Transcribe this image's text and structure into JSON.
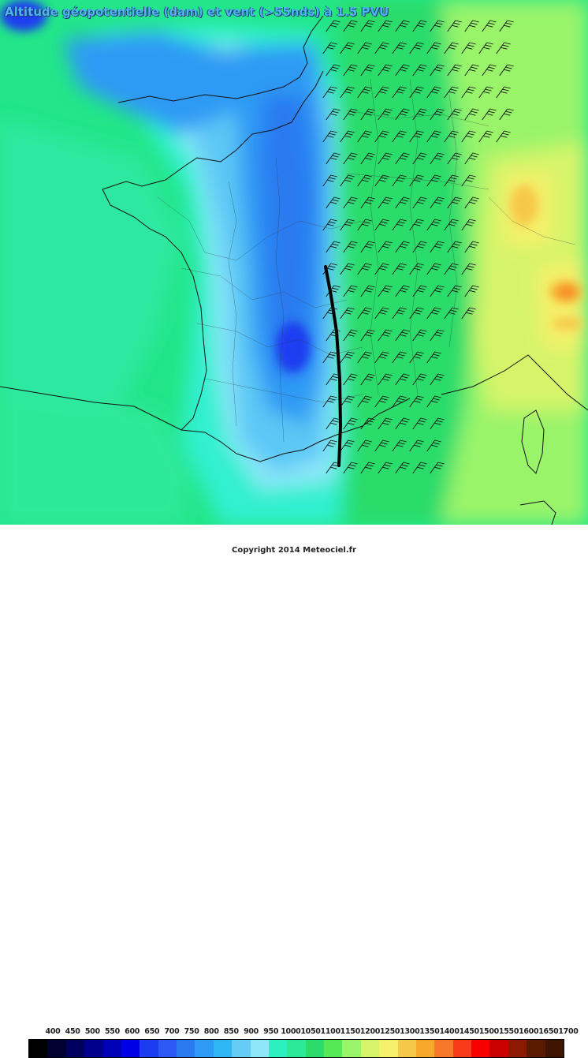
{
  "title": "Altitude géopotentielle (dam) et vent (>55nds) à 1.5 PVU",
  "credit": "Copyright 2014 Meteociel.fr",
  "legend": {
    "labels": [
      "400",
      "450",
      "500",
      "550",
      "600",
      "650",
      "700",
      "750",
      "800",
      "850",
      "900",
      "950",
      "1000",
      "1050",
      "1100",
      "1150",
      "1200",
      "1250",
      "1300",
      "1350",
      "1400",
      "1450",
      "1500",
      "1550",
      "1600",
      "1650",
      "1700"
    ],
    "colors": [
      "#000000",
      "#000033",
      "#00005f",
      "#00008c",
      "#0000b8",
      "#0000e6",
      "#1c3cf0",
      "#2e58f5",
      "#2c7af0",
      "#2e9af5",
      "#2eb6f5",
      "#66ccf5",
      "#8ee6fa",
      "#2cf0c0",
      "#2ee89a",
      "#2cdc6a",
      "#56e856",
      "#9af46a",
      "#d6f46a",
      "#f6f06a",
      "#f6c84a",
      "#f6a82a",
      "#f6782a",
      "#f63a1a",
      "#f60000",
      "#c80000",
      "#8c1a00",
      "#5a1a00",
      "#3c1400"
    ]
  },
  "map": {
    "region": "France",
    "front_line": "solid black line over the Rhône valley",
    "wind_barbs": "barbs east of the trough, south-westerly flow"
  }
}
